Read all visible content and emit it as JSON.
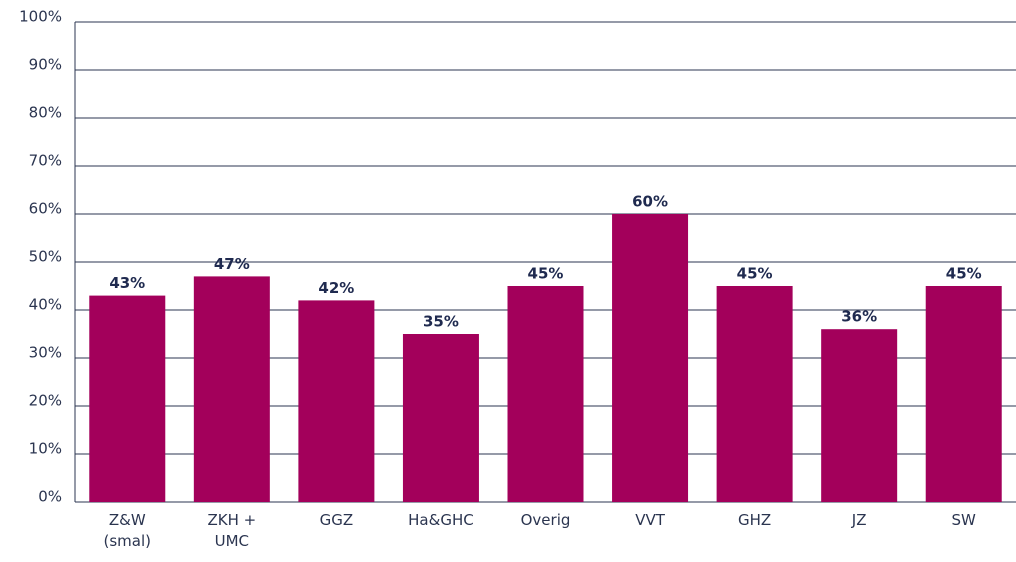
{
  "chart_data": {
    "type": "bar",
    "categories": [
      "Z&W (smal)",
      "ZKH + UMC",
      "GGZ",
      "Ha&GHC",
      "Overig",
      "VVT",
      "GHZ",
      "JZ",
      "SW"
    ],
    "values": [
      43,
      47,
      42,
      35,
      45,
      60,
      45,
      36,
      45
    ],
    "value_labels": [
      "43%",
      "47%",
      "42%",
      "35%",
      "45%",
      "60%",
      "45%",
      "36%",
      "45%"
    ],
    "color": "#a3005b",
    "ylim": [
      0,
      100
    ],
    "yticks": [
      {
        "value": 0,
        "label": "0%"
      },
      {
        "value": 10,
        "label": "10%"
      },
      {
        "value": 20,
        "label": "20%"
      },
      {
        "value": 30,
        "label": "30%"
      },
      {
        "value": 40,
        "label": "40%"
      },
      {
        "value": 50,
        "label": "50%"
      },
      {
        "value": 60,
        "label": "60%"
      },
      {
        "value": 70,
        "label": "70%"
      },
      {
        "value": 80,
        "label": "80%"
      },
      {
        "value": 90,
        "label": "90%"
      },
      {
        "value": 100,
        "label": "100%"
      }
    ],
    "grid": true
  }
}
